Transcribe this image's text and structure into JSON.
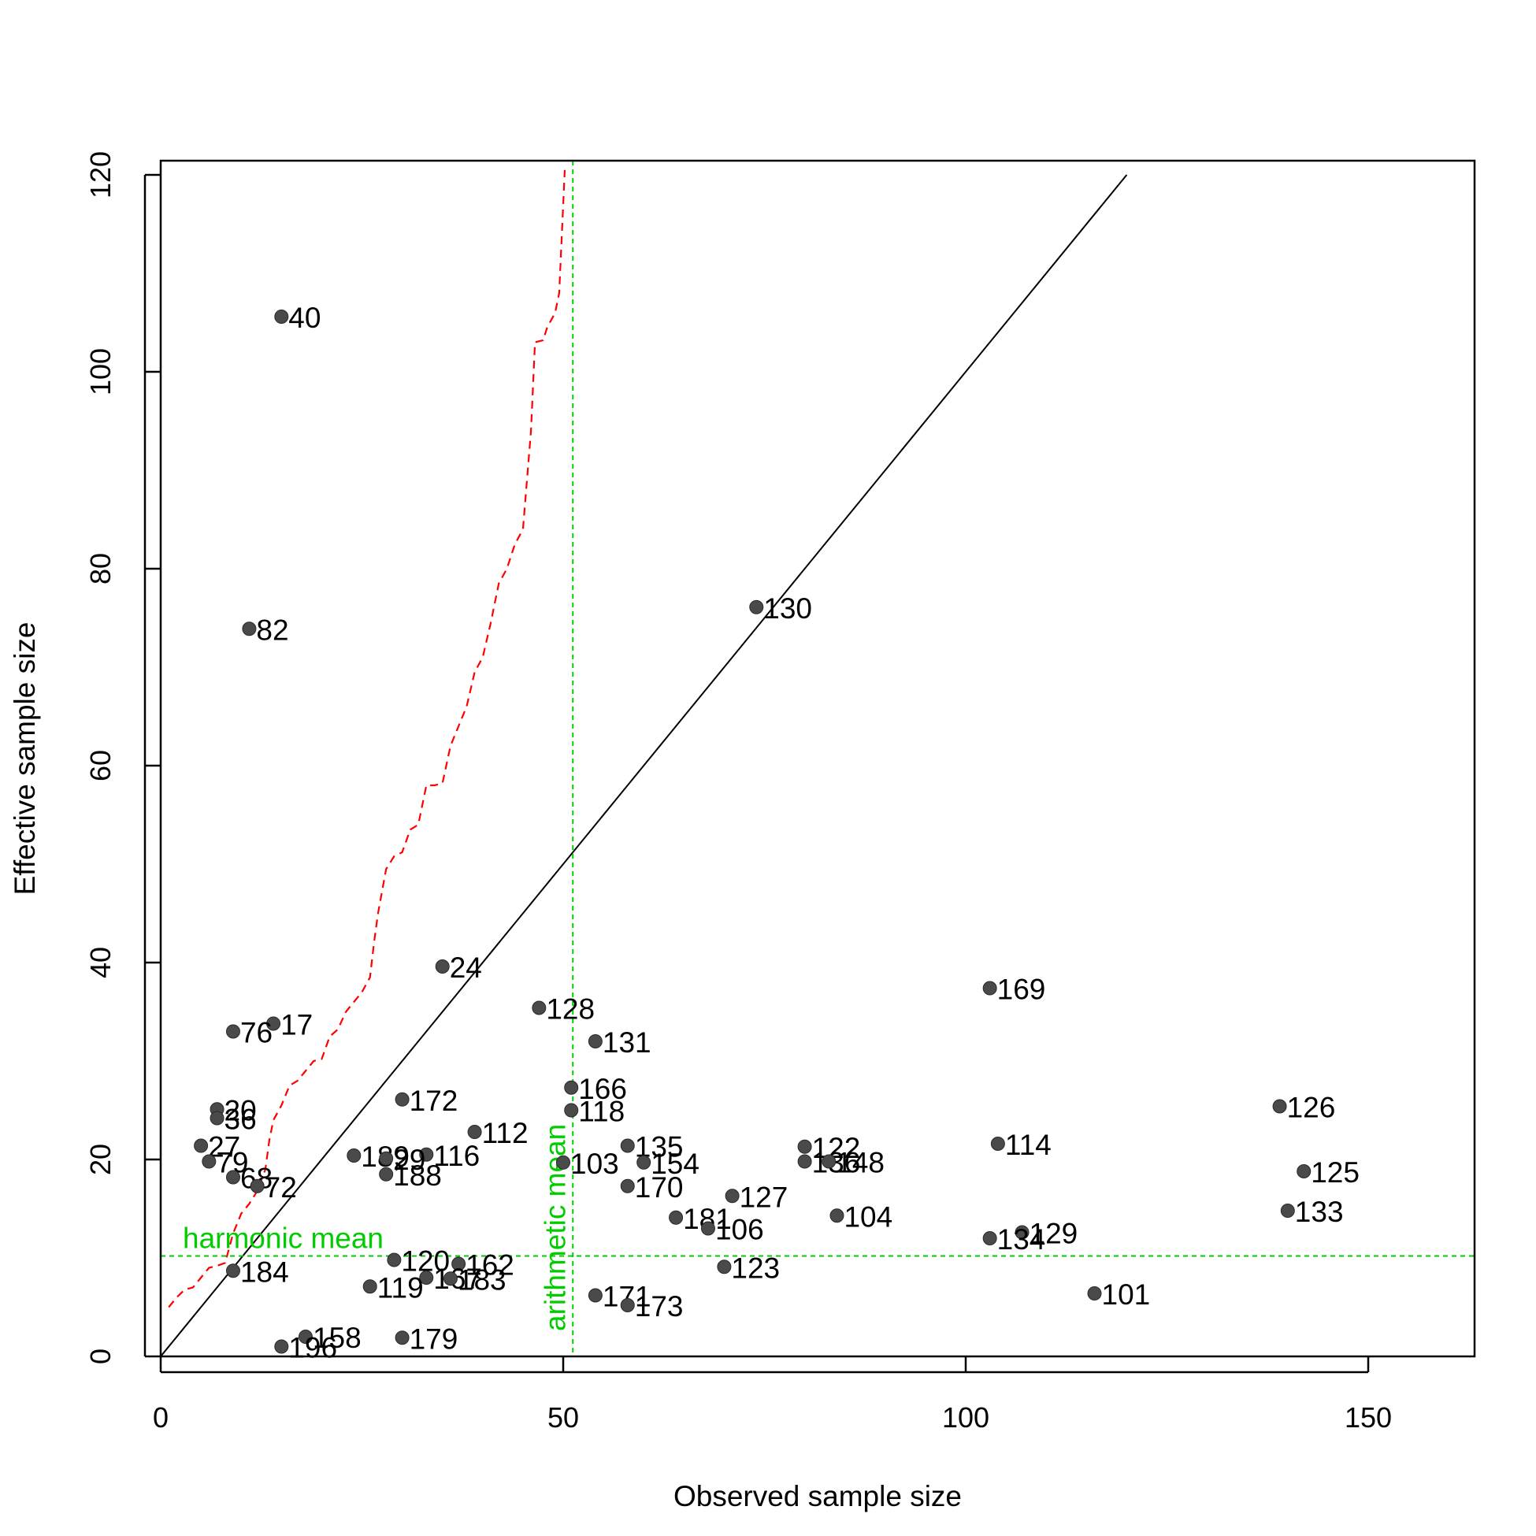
{
  "chart_data": {
    "type": "scatter",
    "title": "",
    "xlabel": "Observed sample size",
    "ylabel": "Effective sample size",
    "xlim": [
      0,
      163
    ],
    "ylim": [
      0,
      120
    ],
    "x_ticks": [
      0,
      50,
      100,
      150
    ],
    "y_ticks": [
      0,
      20,
      40,
      60,
      80,
      100,
      120
    ],
    "grid": false,
    "point_color": "#4a4a4a",
    "identity_line_color": "#000000",
    "reference_color": "#00cc00",
    "quantile_line_color": "#ff0000",
    "reference_lines": {
      "harmonic_mean": {
        "y": 10.2,
        "label": "harmonic mean"
      },
      "arithmetic_mean": {
        "x": 51.2,
        "label": "arithmetic mean"
      }
    },
    "points": [
      {
        "label": "40",
        "x": 15,
        "y": 105.6
      },
      {
        "label": "82",
        "x": 11,
        "y": 73.9
      },
      {
        "label": "130",
        "x": 74,
        "y": 76.1
      },
      {
        "label": "24",
        "x": 35,
        "y": 39.6
      },
      {
        "label": "169",
        "x": 103,
        "y": 37.4
      },
      {
        "label": "128",
        "x": 47,
        "y": 35.4
      },
      {
        "label": "17",
        "x": 14,
        "y": 33.8
      },
      {
        "label": "76",
        "x": 9,
        "y": 33.0
      },
      {
        "label": "131",
        "x": 54,
        "y": 32.0
      },
      {
        "label": "166",
        "x": 51,
        "y": 27.3
      },
      {
        "label": "172",
        "x": 30,
        "y": 26.1
      },
      {
        "label": "126",
        "x": 139,
        "y": 25.4
      },
      {
        "label": "20",
        "x": 7,
        "y": 25.1
      },
      {
        "label": "118",
        "x": 51,
        "y": 25.0
      },
      {
        "label": "36",
        "x": 7,
        "y": 24.2
      },
      {
        "label": "112",
        "x": 39,
        "y": 22.8
      },
      {
        "label": "114",
        "x": 104,
        "y": 21.6
      },
      {
        "label": "27",
        "x": 5,
        "y": 21.4
      },
      {
        "label": "135",
        "x": 58,
        "y": 21.4
      },
      {
        "label": "122",
        "x": 80,
        "y": 21.3
      },
      {
        "label": "116",
        "x": 33,
        "y": 20.5
      },
      {
        "label": "189",
        "x": 24,
        "y": 20.4
      },
      {
        "label": "29",
        "x": 28,
        "y": 20.1
      },
      {
        "label": "136",
        "x": 80,
        "y": 19.8
      },
      {
        "label": "148",
        "x": 83,
        "y": 19.8
      },
      {
        "label": "79",
        "x": 6,
        "y": 19.8
      },
      {
        "label": "154",
        "x": 60,
        "y": 19.7
      },
      {
        "label": "103",
        "x": 50,
        "y": 19.7
      },
      {
        "label": "125",
        "x": 142,
        "y": 18.8
      },
      {
        "label": "188",
        "x": 28,
        "y": 18.5
      },
      {
        "label": "68",
        "x": 9,
        "y": 18.2
      },
      {
        "label": "72",
        "x": 12,
        "y": 17.3
      },
      {
        "label": "170",
        "x": 58,
        "y": 17.3
      },
      {
        "label": "127",
        "x": 71,
        "y": 16.3
      },
      {
        "label": "133",
        "x": 140,
        "y": 14.8
      },
      {
        "label": "104",
        "x": 84,
        "y": 14.3
      },
      {
        "label": "181",
        "x": 64,
        "y": 14.1
      },
      {
        "label": "106",
        "x": 68,
        "y": 13.0
      },
      {
        "label": "129",
        "x": 107,
        "y": 12.6
      },
      {
        "label": "134",
        "x": 103,
        "y": 12.0
      },
      {
        "label": "120",
        "x": 29,
        "y": 9.8
      },
      {
        "label": "162",
        "x": 37,
        "y": 9.4
      },
      {
        "label": "123",
        "x": 70,
        "y": 9.1
      },
      {
        "label": "184",
        "x": 9,
        "y": 8.7
      },
      {
        "label": "167",
        "x": 33,
        "y": 8.0
      },
      {
        "label": "183",
        "x": 36,
        "y": 7.9
      },
      {
        "label": "119",
        "x": 26,
        "y": 7.1
      },
      {
        "label": "101",
        "x": 116,
        "y": 6.4
      },
      {
        "label": "171",
        "x": 54,
        "y": 6.2
      },
      {
        "label": "173",
        "x": 58,
        "y": 5.2
      },
      {
        "label": "158",
        "x": 18,
        "y": 2.0
      },
      {
        "label": "179",
        "x": 30,
        "y": 1.9
      },
      {
        "label": "196",
        "x": 15,
        "y": 1.0
      }
    ],
    "quantile_curve": [
      [
        1,
        5.0
      ],
      [
        2,
        6.0
      ],
      [
        3,
        6.8
      ],
      [
        4,
        7.0
      ],
      [
        5,
        8.0
      ],
      [
        6,
        9.0
      ],
      [
        7,
        9.2
      ],
      [
        8,
        9.5
      ],
      [
        9,
        12.5
      ],
      [
        10,
        14.5
      ],
      [
        11,
        15.5
      ],
      [
        12,
        16.8
      ],
      [
        13,
        19.0
      ],
      [
        13.5,
        22.0
      ],
      [
        14,
        24.0
      ],
      [
        15,
        25.5
      ],
      [
        15.5,
        26.5
      ],
      [
        16,
        27.5
      ],
      [
        17,
        28.0
      ],
      [
        18,
        29.0
      ],
      [
        19,
        30.0
      ],
      [
        20,
        30.2
      ],
      [
        21,
        32.5
      ],
      [
        22,
        33.2
      ],
      [
        23,
        35.0
      ],
      [
        24,
        36.0
      ],
      [
        25,
        37.0
      ],
      [
        26,
        38.5
      ],
      [
        26.5,
        42.0
      ],
      [
        27,
        45.0
      ],
      [
        28,
        49.5
      ],
      [
        29,
        50.8
      ],
      [
        30,
        51.2
      ],
      [
        31,
        53.5
      ],
      [
        32,
        54.0
      ],
      [
        33,
        58.0
      ],
      [
        34,
        58.0
      ],
      [
        35,
        58.2
      ],
      [
        36,
        62.0
      ],
      [
        37,
        64.0
      ],
      [
        38,
        66.0
      ],
      [
        39,
        69.5
      ],
      [
        40,
        71.0
      ],
      [
        41,
        74.5
      ],
      [
        42,
        78.5
      ],
      [
        43,
        80.0
      ],
      [
        44,
        82.5
      ],
      [
        45,
        84.0
      ],
      [
        46,
        94.0
      ],
      [
        46.5,
        103.0
      ],
      [
        47.5,
        103.2
      ],
      [
        48,
        104.5
      ],
      [
        49,
        106.0
      ],
      [
        49.5,
        108.0
      ],
      [
        50,
        117.0
      ],
      [
        50.2,
        120.5
      ]
    ]
  }
}
